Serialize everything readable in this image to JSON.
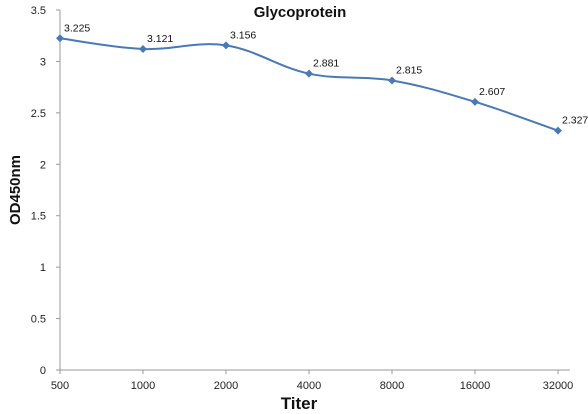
{
  "chart_data": {
    "type": "line",
    "title": "Glycoprotein",
    "xlabel": "Titer",
    "ylabel": "OD450nm",
    "categories": [
      "500",
      "1000",
      "2000",
      "4000",
      "8000",
      "16000",
      "32000"
    ],
    "series": [
      {
        "values": [
          3.225,
          3.121,
          3.156,
          2.881,
          2.815,
          2.607,
          2.327
        ]
      }
    ],
    "data_labels": [
      "3.225",
      "3.121",
      "3.156",
      "2.881",
      "2.815",
      "2.607",
      "2.327"
    ],
    "ylim": [
      0,
      3.5
    ],
    "yticks": [
      "0",
      "0.5",
      "1",
      "1.5",
      "2",
      "2.5",
      "3",
      "3.5"
    ],
    "grid": false,
    "line_color": "#4a7ab5",
    "marker": "diamond"
  }
}
